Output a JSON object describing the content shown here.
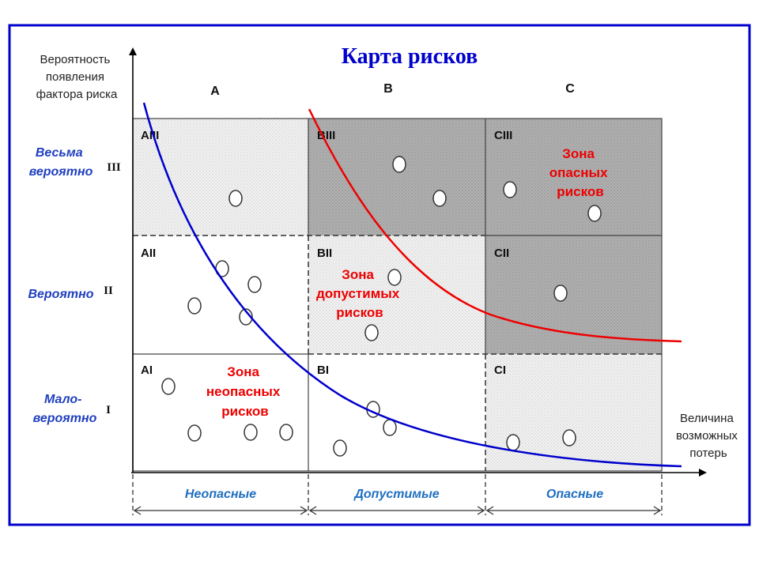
{
  "title": "Карта рисков",
  "y_axis_label": [
    "Вероятность",
    "появления",
    "фактора риска"
  ],
  "x_axis_label": [
    "Величина",
    "возможных",
    "потерь"
  ],
  "columns": [
    "A",
    "B",
    "C"
  ],
  "rows": [
    {
      "name": [
        "Весьма",
        "вероятно"
      ],
      "numeral": "III"
    },
    {
      "name": [
        "Вероятно"
      ],
      "numeral": "II"
    },
    {
      "name": [
        "Мало-",
        "вероятно"
      ],
      "numeral": "I"
    }
  ],
  "cells": {
    "AIII": "AIII",
    "BIII": "BIII",
    "CIII": "CIII",
    "AII": "AII",
    "BII": "BII",
    "CII": "CII",
    "AI": "AI",
    "BI": "BI",
    "CI": "CI"
  },
  "zones": {
    "safe": [
      "Зона",
      "неопасных",
      "рисков"
    ],
    "acceptable": [
      "Зона",
      "допустимых",
      "рисков"
    ],
    "dangerous": [
      "Зона",
      "опасных",
      "рисков"
    ]
  },
  "bottom_categories": [
    "Неопасные",
    "Допустимые",
    "Опасные"
  ],
  "colors": {
    "frame": "#0000cc",
    "title": "#0000cc",
    "row_label": "#1f3fbf",
    "blue_curve": "#0000cc",
    "red_curve": "#ee0000",
    "zone_text": "#ee0000",
    "dark_fill": "#a8a8a8",
    "light_fill": "#ececec",
    "category_text": "#1f6fbf"
  }
}
